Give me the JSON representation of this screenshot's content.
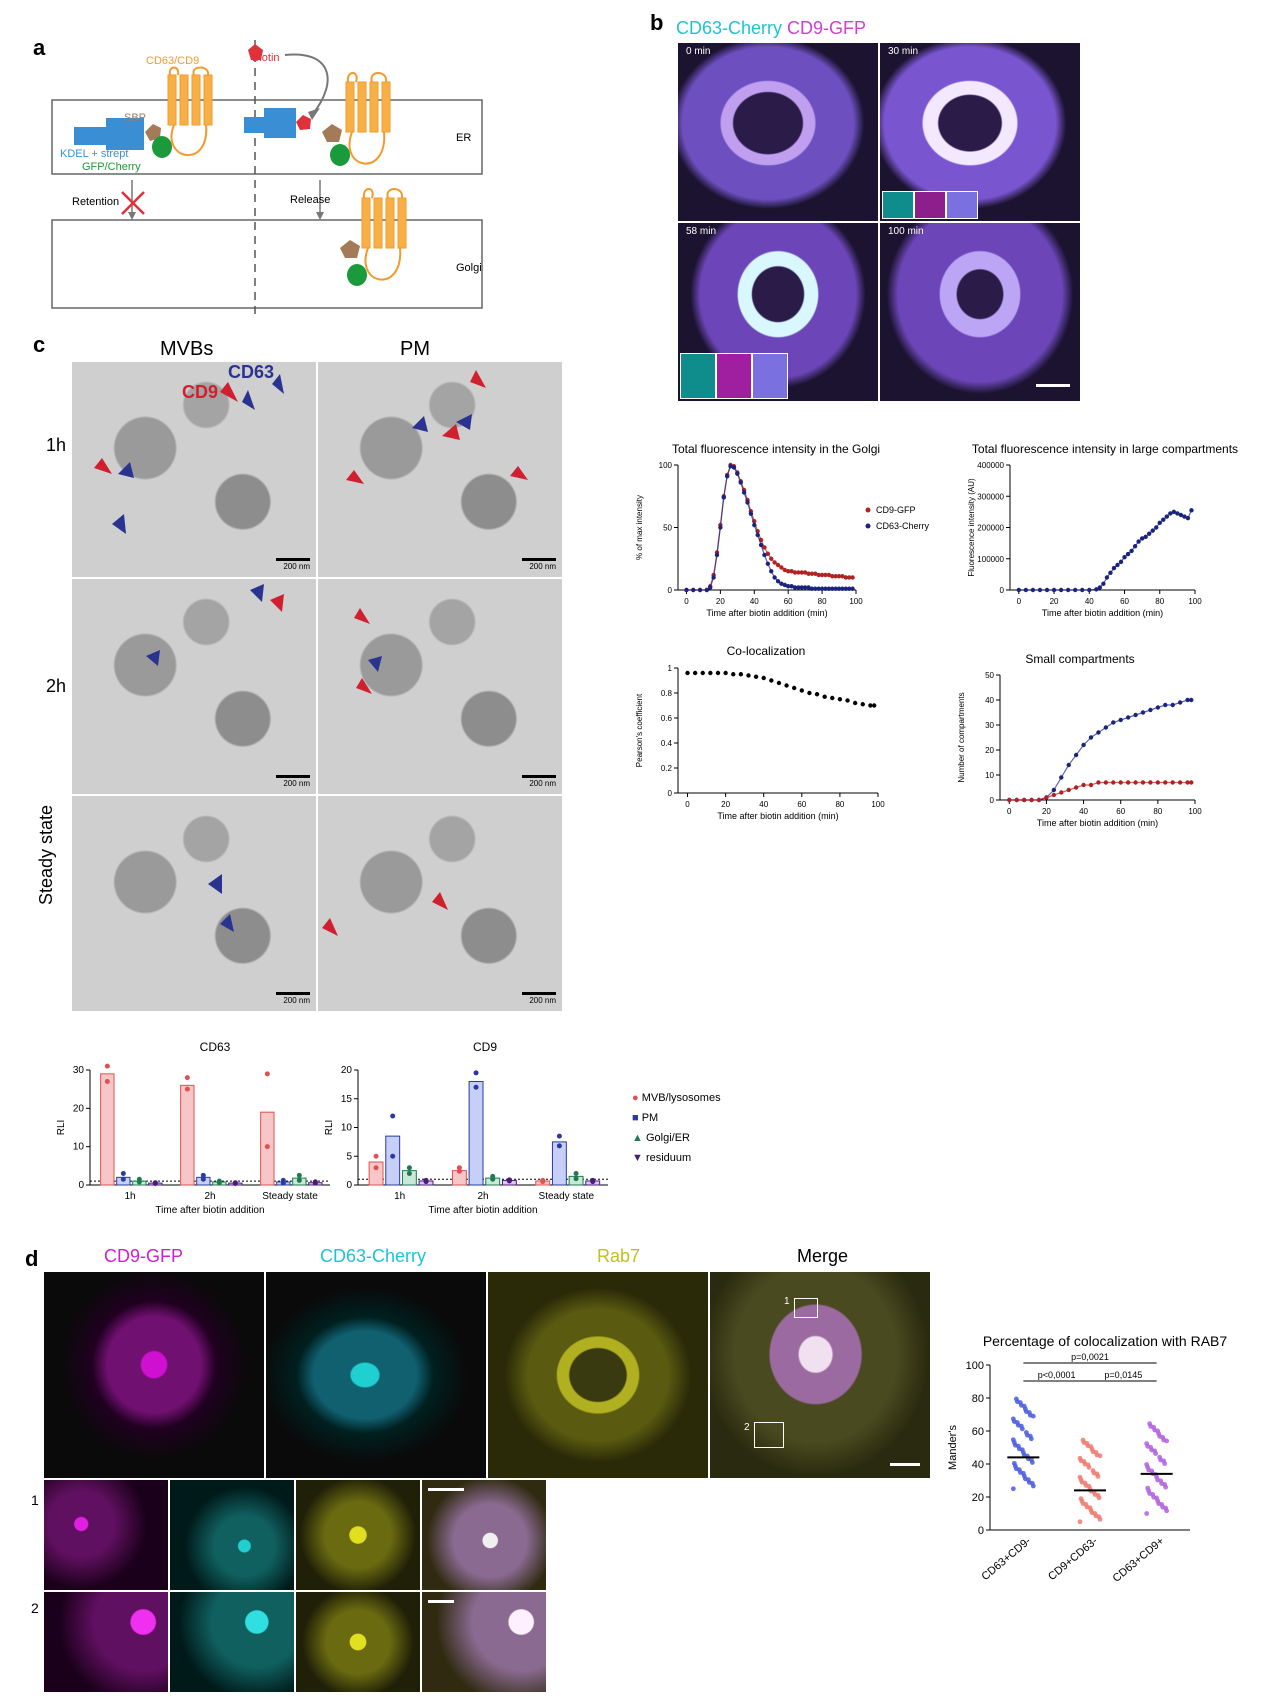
{
  "panels": {
    "a": "a",
    "b": "b",
    "c": "c",
    "d": "d"
  },
  "panel_a": {
    "cd63_cd9": "CD63/CD9",
    "biotin": "Biotin",
    "sbp": "SBP",
    "kdel": "KDEL + strept",
    "gfp": "GFP/Cherry",
    "er": "ER",
    "retention": "Retention",
    "release": "Release",
    "golgi": "Golgi",
    "colors": {
      "cd63": "#f39a2e",
      "sbp": "#a37b58",
      "kdel": "#3a8fd4",
      "gfp": "#1a9a3b",
      "biotin": "#e0303a"
    }
  },
  "panel_b": {
    "title_cd63": "CD63-Cherry",
    "title_cd9": "CD9-GFP",
    "frames": [
      "0 min",
      "30 min",
      "58 min",
      "100 min"
    ]
  },
  "panel_c": {
    "col_mvb": "MVBs",
    "col_pm": "PM",
    "rows": [
      "1h",
      "2h",
      "Steady state"
    ],
    "cd63_label": "CD63",
    "cd9_label": "CD9",
    "scale": "200 nm"
  },
  "panel_d": {
    "headers": [
      "CD9-GFP",
      "CD63-Cherry",
      "Rab7",
      "Merge"
    ],
    "zoom_rows": [
      "1",
      "2"
    ],
    "roi_labels": [
      "1",
      "2"
    ]
  },
  "chart_data": [
    {
      "id": "golgi",
      "type": "line",
      "title": "Total fluorescence intensity in the Golgi",
      "xlabel": "Time after biotin addition (min)",
      "ylabel": "% of max intensity",
      "xlim": [
        -5,
        100
      ],
      "ylim": [
        0,
        100
      ],
      "xticks": [
        0,
        20,
        40,
        60,
        80,
        100
      ],
      "yticks": [
        0,
        50,
        100
      ],
      "legend": "right",
      "series": [
        {
          "name": "CD9-GFP",
          "color": "#b22222",
          "x": [
            0,
            4,
            8,
            12,
            14,
            16,
            18,
            20,
            22,
            24,
            26,
            28,
            30,
            32,
            34,
            36,
            38,
            40,
            42,
            44,
            46,
            48,
            50,
            52,
            54,
            56,
            58,
            60,
            62,
            64,
            66,
            68,
            70,
            72,
            74,
            76,
            78,
            80,
            82,
            84,
            86,
            88,
            90,
            92,
            94,
            96,
            98
          ],
          "y": [
            0,
            0,
            0,
            0,
            3,
            12,
            30,
            52,
            75,
            92,
            100,
            99,
            94,
            87,
            80,
            72,
            63,
            55,
            47,
            40,
            34,
            29,
            25,
            22,
            20,
            18,
            16,
            15,
            15,
            14,
            14,
            14,
            14,
            13,
            13,
            13,
            12,
            12,
            12,
            12,
            11,
            11,
            11,
            11,
            10,
            10,
            10
          ]
        },
        {
          "name": "CD63-Cherry",
          "color": "#1a237e",
          "x": [
            0,
            4,
            8,
            12,
            14,
            16,
            18,
            20,
            22,
            24,
            26,
            28,
            30,
            32,
            34,
            36,
            38,
            40,
            42,
            44,
            46,
            48,
            50,
            52,
            54,
            56,
            58,
            60,
            62,
            64,
            66,
            68,
            70,
            72,
            74,
            76,
            78,
            80,
            82,
            84,
            86,
            88,
            90,
            92,
            94,
            96,
            98
          ],
          "y": [
            0,
            0,
            0,
            0,
            2,
            10,
            28,
            50,
            74,
            91,
            99,
            98,
            93,
            86,
            78,
            70,
            61,
            52,
            44,
            36,
            28,
            21,
            15,
            10,
            7,
            5,
            4,
            3,
            3,
            2,
            2,
            2,
            2,
            2,
            1,
            1,
            1,
            1,
            1,
            1,
            1,
            1,
            1,
            1,
            1,
            1,
            1
          ]
        }
      ]
    },
    {
      "id": "large",
      "type": "line",
      "title": "Total fluorescence intensity in large compartments",
      "xlabel": "Time after biotin addition (min)",
      "ylabel": "Fluorescence intensity (AU)",
      "xlim": [
        -5,
        100
      ],
      "ylim": [
        0,
        400000
      ],
      "xticks": [
        0,
        20,
        40,
        60,
        80,
        100
      ],
      "yticks": [
        0,
        100000,
        200000,
        300000,
        400000
      ],
      "series": [
        {
          "name": "",
          "color": "#1a237e",
          "x": [
            0,
            4,
            8,
            12,
            16,
            20,
            24,
            28,
            32,
            36,
            40,
            44,
            46,
            48,
            50,
            52,
            54,
            56,
            58,
            60,
            62,
            64,
            66,
            68,
            70,
            72,
            74,
            76,
            78,
            80,
            82,
            84,
            86,
            88,
            90,
            92,
            94,
            96,
            98
          ],
          "y": [
            0,
            0,
            0,
            0,
            0,
            0,
            0,
            0,
            0,
            0,
            0,
            2000,
            8000,
            20000,
            40000,
            55000,
            70000,
            80000,
            90000,
            105000,
            115000,
            125000,
            140000,
            155000,
            165000,
            170000,
            180000,
            190000,
            200000,
            215000,
            225000,
            235000,
            245000,
            250000,
            245000,
            240000,
            235000,
            230000,
            255000
          ]
        }
      ]
    },
    {
      "id": "coloc",
      "type": "scatter",
      "title": "Co-localization",
      "xlabel": "Time after biotin addition (min)",
      "ylabel": "Pearson's coefficient",
      "xlim": [
        -5,
        100
      ],
      "ylim": [
        0,
        1.0
      ],
      "xticks": [
        0,
        20,
        40,
        60,
        80,
        100
      ],
      "yticks": [
        0.0,
        0.2,
        0.4,
        0.6,
        0.8,
        1.0
      ],
      "series": [
        {
          "name": "",
          "color": "#000000",
          "x": [
            0,
            4,
            8,
            12,
            16,
            20,
            24,
            28,
            32,
            36,
            40,
            44,
            48,
            52,
            56,
            60,
            64,
            68,
            72,
            76,
            80,
            84,
            88,
            92,
            96,
            98
          ],
          "y": [
            0.96,
            0.96,
            0.96,
            0.96,
            0.96,
            0.96,
            0.95,
            0.95,
            0.94,
            0.93,
            0.92,
            0.9,
            0.88,
            0.86,
            0.84,
            0.82,
            0.8,
            0.79,
            0.77,
            0.76,
            0.75,
            0.74,
            0.72,
            0.71,
            0.7,
            0.7
          ]
        }
      ]
    },
    {
      "id": "small",
      "type": "line",
      "title": "Small compartments",
      "xlabel": "Time after biotin addition (min)",
      "ylabel": "Number of compartments",
      "xlim": [
        -5,
        100
      ],
      "ylim": [
        0,
        50
      ],
      "xticks": [
        0,
        20,
        40,
        60,
        80,
        100
      ],
      "yticks": [
        0,
        10,
        20,
        30,
        40,
        50
      ],
      "series": [
        {
          "name": "",
          "color": "#1a237e",
          "x": [
            0,
            4,
            8,
            12,
            16,
            20,
            24,
            28,
            32,
            36,
            40,
            44,
            48,
            52,
            56,
            60,
            64,
            68,
            72,
            76,
            80,
            84,
            88,
            92,
            96,
            98
          ],
          "y": [
            0,
            0,
            0,
            0,
            0,
            1,
            4,
            9,
            14,
            18,
            22,
            25,
            27,
            29,
            31,
            32,
            33,
            34,
            35,
            36,
            37,
            38,
            38,
            39,
            40,
            40
          ]
        },
        {
          "name": "",
          "color": "#b22222",
          "x": [
            0,
            4,
            8,
            12,
            16,
            20,
            24,
            28,
            32,
            36,
            40,
            44,
            48,
            52,
            56,
            60,
            64,
            68,
            72,
            76,
            80,
            84,
            88,
            92,
            96,
            98
          ],
          "y": [
            0,
            0,
            0,
            0,
            0,
            1,
            2,
            3,
            4,
            5,
            6,
            6,
            7,
            7,
            7,
            7,
            7,
            7,
            7,
            7,
            7,
            7,
            7,
            7,
            7,
            7
          ]
        }
      ]
    },
    {
      "id": "cd63bar",
      "type": "bar",
      "title": "CD63",
      "xlabel": "Time after biotin addition",
      "ylabel": "RLI",
      "ylim": [
        0,
        30
      ],
      "yticks": [
        0,
        10,
        20,
        30
      ],
      "categories": [
        "1h",
        "2h",
        "Steady state"
      ],
      "series": [
        {
          "name": "MVB/lysosomes",
          "color": "#e05050",
          "fill": "#f8c6c6",
          "values": [
            29,
            26,
            19
          ],
          "points": [
            [
              31,
              27
            ],
            [
              28,
              25
            ],
            [
              29,
              10
            ]
          ]
        },
        {
          "name": "PM",
          "color": "#2a3aa0",
          "fill": "#c6cff8",
          "values": [
            2,
            2,
            0.8
          ],
          "points": [
            [
              3,
              1.5
            ],
            [
              2.5,
              1.5
            ],
            [
              1.2,
              0.5
            ]
          ]
        },
        {
          "name": "Golgi/ER",
          "color": "#1f7a50",
          "fill": "#c6ead6",
          "values": [
            1,
            0.8,
            1.8
          ],
          "points": [
            [
              1.5,
              0.8
            ],
            [
              1,
              0.6
            ],
            [
              2.5,
              1.2
            ]
          ]
        },
        {
          "name": "residuum",
          "color": "#4a1a7a",
          "fill": "#ddc6f0",
          "values": [
            0.5,
            0.5,
            0.6
          ],
          "points": [
            [
              0.6,
              0.4
            ],
            [
              0.6,
              0.4
            ],
            [
              0.8,
              0.5
            ]
          ]
        }
      ]
    },
    {
      "id": "cd9bar",
      "type": "bar",
      "title": "CD9",
      "xlabel": "Time after biotin addition",
      "ylabel": "RLI",
      "ylim": [
        0,
        20
      ],
      "yticks": [
        0,
        5,
        10,
        15,
        20
      ],
      "categories": [
        "1h",
        "2h",
        "Steady state"
      ],
      "series": [
        {
          "name": "MVB/lysosomes",
          "color": "#e05050",
          "fill": "#f8c6c6",
          "values": [
            4,
            2.5,
            0.7
          ],
          "points": [
            [
              5,
              3
            ],
            [
              3,
              2.4
            ],
            [
              0.8,
              0.6
            ]
          ]
        },
        {
          "name": "PM",
          "color": "#2a3aa0",
          "fill": "#c6cff8",
          "values": [
            8.5,
            18,
            7.5
          ],
          "points": [
            [
              12,
              5
            ],
            [
              19.5,
              17
            ],
            [
              8.5,
              6.8
            ]
          ]
        },
        {
          "name": "Golgi/ER",
          "color": "#1f7a50",
          "fill": "#c6ead6",
          "values": [
            2.5,
            1.2,
            1.5
          ],
          "points": [
            [
              3,
              2
            ],
            [
              1.5,
              1
            ],
            [
              2,
              1.1
            ]
          ]
        },
        {
          "name": "residuum",
          "color": "#4a1a7a",
          "fill": "#ddc6f0",
          "values": [
            0.7,
            0.8,
            0.7
          ],
          "points": [
            [
              0.8,
              0.6
            ],
            [
              0.9,
              0.7
            ],
            [
              0.8,
              0.6
            ]
          ]
        }
      ]
    },
    {
      "id": "manders",
      "type": "scatter",
      "title": "Percentage of colocalization with RAB7",
      "ylabel": "Mander's",
      "ylim": [
        0,
        100
      ],
      "yticks": [
        0,
        20,
        40,
        60,
        80,
        100
      ],
      "categories": [
        "CD63+CD9-",
        "CD9+CD63-",
        "CD63+CD9+"
      ],
      "medians": [
        44,
        24,
        34
      ],
      "colors": [
        "#4a5ae0",
        "#f07a70",
        "#b060e0"
      ],
      "stats": [
        {
          "a": 0,
          "b": 2,
          "label": "p=0,0021"
        },
        {
          "a": 0,
          "b": 1,
          "label": "p<0,0001"
        },
        {
          "a": 1,
          "b": 2,
          "label": "p=0,0145"
        }
      ]
    }
  ]
}
